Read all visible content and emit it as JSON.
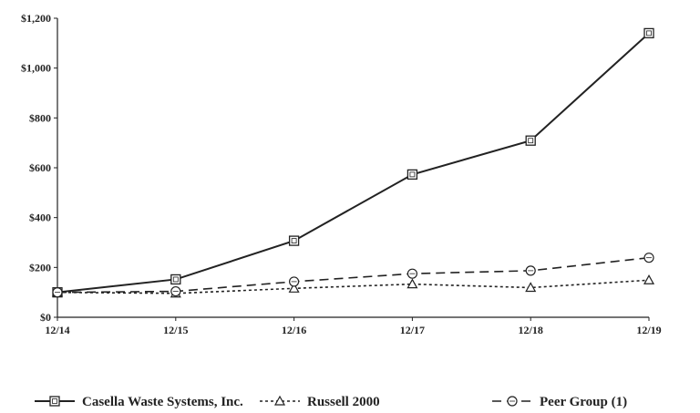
{
  "chart_data": {
    "type": "line",
    "title": "",
    "xlabel": "",
    "ylabel": "",
    "categories": [
      "12/14",
      "12/15",
      "12/16",
      "12/17",
      "12/18",
      "12/19"
    ],
    "y_ticks": [
      "$0",
      "$200",
      "$400",
      "$600",
      "$800",
      "$1,000",
      "$1,200"
    ],
    "ylim": [
      0,
      1200
    ],
    "grid": false,
    "legend_position": "bottom",
    "series": [
      {
        "name": "Casella Waste Systems, Inc.",
        "values": [
          100,
          152,
          307,
          573,
          709,
          1140
        ],
        "marker": "square",
        "dash": "solid",
        "color": "#222222"
      },
      {
        "name": "Russell 2000",
        "values": [
          100,
          96,
          116,
          133,
          119,
          149
        ],
        "marker": "triangle",
        "dash": "dotted",
        "color": "#222222"
      },
      {
        "name": "Peer Group (1)",
        "values": [
          100,
          104,
          143,
          175,
          187,
          239
        ],
        "marker": "circle",
        "dash": "dashed",
        "color": "#222222"
      }
    ]
  }
}
